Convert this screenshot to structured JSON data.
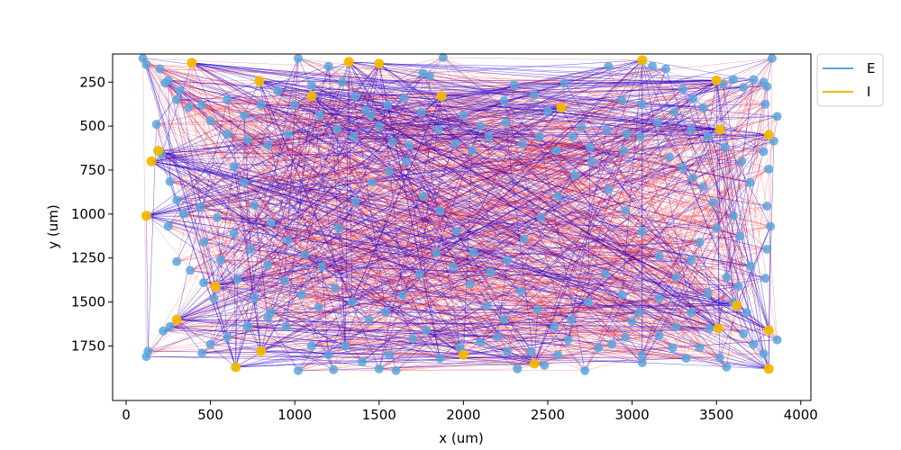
{
  "chart_data": {
    "type": "scatter",
    "title": "",
    "xlabel": "x (um)",
    "ylabel": "y (um)",
    "xlim": [
      -80,
      4060
    ],
    "ylim": [
      2060,
      90
    ],
    "y_inverted": true,
    "xticks": [
      0,
      500,
      1000,
      1500,
      2000,
      2500,
      3000,
      3500,
      4000
    ],
    "yticks": [
      250,
      500,
      750,
      1000,
      1250,
      1500,
      1750
    ],
    "grid": false,
    "legend": {
      "placement": "outside top-right",
      "entries": [
        {
          "label": "E",
          "color": "#5DA5DA"
        },
        {
          "label": "I",
          "color": "#F2B800"
        }
      ]
    },
    "connection_colors": {
      "excitatory": "#ff0000",
      "inhibitory": "#2200cc"
    },
    "series": [
      {
        "name": "E",
        "color": "#5DA5DA",
        "points": [
          [
            100,
            115
          ],
          [
            120,
            150
          ],
          [
            200,
            175
          ],
          [
            250,
            240
          ],
          [
            230,
            255
          ],
          [
            320,
            300
          ],
          [
            300,
            350
          ],
          [
            370,
            395
          ],
          [
            450,
            380
          ],
          [
            500,
            470
          ],
          [
            600,
            545
          ],
          [
            720,
            575
          ],
          [
            840,
            610
          ],
          [
            960,
            545
          ],
          [
            1020,
            115
          ],
          [
            1100,
            265
          ],
          [
            1200,
            160
          ],
          [
            1280,
            250
          ],
          [
            1360,
            330
          ],
          [
            1420,
            410
          ],
          [
            1500,
            500
          ],
          [
            1580,
            590
          ],
          [
            1680,
            610
          ],
          [
            1760,
            200
          ],
          [
            1800,
            215
          ],
          [
            1880,
            110
          ],
          [
            2000,
            440
          ],
          [
            2100,
            500
          ],
          [
            2240,
            355
          ],
          [
            2300,
            265
          ],
          [
            2420,
            325
          ],
          [
            2500,
            415
          ],
          [
            2600,
            255
          ],
          [
            2700,
            505
          ],
          [
            2860,
            160
          ],
          [
            2940,
            355
          ],
          [
            2970,
            545
          ],
          [
            3060,
            375
          ],
          [
            3120,
            160
          ],
          [
            3200,
            175
          ],
          [
            3300,
            290
          ],
          [
            3360,
            345
          ],
          [
            3420,
            395
          ],
          [
            3540,
            260
          ],
          [
            3600,
            235
          ],
          [
            3660,
            280
          ],
          [
            3720,
            235
          ],
          [
            3780,
            250
          ],
          [
            3800,
            275
          ],
          [
            3830,
            115
          ],
          [
            3840,
            585
          ],
          [
            3860,
            445
          ],
          [
            3790,
            375
          ],
          [
            3780,
            645
          ],
          [
            3810,
            745
          ],
          [
            3800,
            955
          ],
          [
            3820,
            1070
          ],
          [
            3800,
            1200
          ],
          [
            3790,
            1365
          ],
          [
            3860,
            1715
          ],
          [
            3780,
            1795
          ],
          [
            3660,
            1680
          ],
          [
            3600,
            1505
          ],
          [
            3630,
            1410
          ],
          [
            3700,
            1295
          ],
          [
            3640,
            1125
          ],
          [
            3600,
            1010
          ],
          [
            3480,
            935
          ],
          [
            3420,
            845
          ],
          [
            3360,
            795
          ],
          [
            3300,
            735
          ],
          [
            3220,
            675
          ],
          [
            180,
            490
          ],
          [
            210,
            660
          ],
          [
            260,
            815
          ],
          [
            300,
            920
          ],
          [
            340,
            1000
          ],
          [
            250,
            1070
          ],
          [
            300,
            1270
          ],
          [
            380,
            1320
          ],
          [
            460,
            1390
          ],
          [
            520,
            1480
          ],
          [
            260,
            1640
          ],
          [
            220,
            1665
          ],
          [
            130,
            1780
          ],
          [
            120,
            1810
          ],
          [
            450,
            1790
          ],
          [
            500,
            1740
          ],
          [
            600,
            1700
          ],
          [
            720,
            1640
          ],
          [
            840,
            1590
          ],
          [
            950,
            1640
          ],
          [
            1020,
            1890
          ],
          [
            1100,
            1750
          ],
          [
            1200,
            1800
          ],
          [
            1230,
            1885
          ],
          [
            1300,
            1750
          ],
          [
            1400,
            1840
          ],
          [
            1500,
            1880
          ],
          [
            1560,
            1800
          ],
          [
            1600,
            1890
          ],
          [
            1700,
            1710
          ],
          [
            1780,
            1660
          ],
          [
            1860,
            1820
          ],
          [
            1980,
            1760
          ],
          [
            2100,
            1730
          ],
          [
            2200,
            1700
          ],
          [
            2260,
            1780
          ],
          [
            2320,
            1880
          ],
          [
            2400,
            1780
          ],
          [
            2480,
            1860
          ],
          [
            2560,
            1800
          ],
          [
            2620,
            1715
          ],
          [
            2720,
            1890
          ],
          [
            2800,
            1760
          ],
          [
            2880,
            1740
          ],
          [
            2960,
            1700
          ],
          [
            3000,
            1610
          ],
          [
            3060,
            1800
          ],
          [
            3060,
            1845
          ],
          [
            3160,
            1690
          ],
          [
            3240,
            1760
          ],
          [
            3320,
            1820
          ],
          [
            3400,
            1760
          ],
          [
            3460,
            1650
          ],
          [
            3520,
            1815
          ],
          [
            3560,
            1870
          ],
          [
            640,
            730
          ],
          [
            700,
            820
          ],
          [
            760,
            950
          ],
          [
            860,
            1050
          ],
          [
            960,
            1150
          ],
          [
            1060,
            1230
          ],
          [
            1160,
            1300
          ],
          [
            1260,
            1080
          ],
          [
            1360,
            930
          ],
          [
            1460,
            820
          ],
          [
            1560,
            760
          ],
          [
            1660,
            700
          ],
          [
            1760,
            900
          ],
          [
            1860,
            980
          ],
          [
            1960,
            1100
          ],
          [
            2060,
            1220
          ],
          [
            2160,
            1330
          ],
          [
            2260,
            1260
          ],
          [
            2360,
            1140
          ],
          [
            2460,
            1020
          ],
          [
            2560,
            900
          ],
          [
            2660,
            780
          ],
          [
            2760,
            700
          ],
          [
            2860,
            860
          ],
          [
            2960,
            980
          ],
          [
            3060,
            1100
          ],
          [
            3160,
            1240
          ],
          [
            3260,
            1360
          ],
          [
            3160,
            1480
          ],
          [
            3040,
            1560
          ],
          [
            2940,
            1460
          ],
          [
            2840,
            1340
          ],
          [
            2740,
            1500
          ],
          [
            2640,
            1600
          ],
          [
            2540,
            1640
          ],
          [
            2440,
            1540
          ],
          [
            2340,
            1440
          ],
          [
            2240,
            1600
          ],
          [
            2140,
            1520
          ],
          [
            2040,
            1400
          ],
          [
            1940,
            1300
          ],
          [
            1840,
            1220
          ],
          [
            1740,
            1340
          ],
          [
            1640,
            1460
          ],
          [
            1540,
            1560
          ],
          [
            1440,
            1600
          ],
          [
            1340,
            1500
          ],
          [
            1240,
            1420
          ],
          [
            1140,
            1530
          ],
          [
            1040,
            1460
          ],
          [
            940,
            1380
          ],
          [
            840,
            1290
          ],
          [
            740,
            1200
          ],
          [
            640,
            1110
          ],
          [
            540,
            1020
          ],
          [
            440,
            960
          ],
          [
            460,
            1160
          ],
          [
            560,
            1260
          ],
          [
            660,
            1370
          ],
          [
            760,
            1480
          ],
          [
            860,
            1560
          ],
          [
            600,
            350
          ],
          [
            700,
            440
          ],
          [
            800,
            380
          ],
          [
            900,
            300
          ],
          [
            1000,
            380
          ],
          [
            1150,
            440
          ],
          [
            1250,
            520
          ],
          [
            1350,
            560
          ],
          [
            1450,
            440
          ],
          [
            1550,
            380
          ],
          [
            1650,
            340
          ],
          [
            1750,
            420
          ],
          [
            1850,
            520
          ],
          [
            1950,
            600
          ],
          [
            2050,
            640
          ],
          [
            2150,
            560
          ],
          [
            2250,
            480
          ],
          [
            2350,
            600
          ],
          [
            2450,
            560
          ],
          [
            2550,
            640
          ],
          [
            2650,
            560
          ],
          [
            2750,
            620
          ],
          [
            2850,
            520
          ],
          [
            2950,
            640
          ],
          [
            3050,
            560
          ],
          [
            3150,
            480
          ],
          [
            3250,
            420
          ],
          [
            3350,
            520
          ],
          [
            3450,
            560
          ],
          [
            3550,
            620
          ],
          [
            3650,
            700
          ],
          [
            3700,
            820
          ],
          [
            3500,
            1080
          ],
          [
            3400,
            1160
          ],
          [
            3350,
            1260
          ],
          [
            3560,
            1360
          ],
          [
            3450,
            1450
          ],
          [
            3350,
            1560
          ],
          [
            3260,
            1640
          ],
          [
            3680,
            1560
          ],
          [
            3720,
            1740
          ]
        ]
      },
      {
        "name": "I",
        "color": "#F2B800",
        "points": [
          [
            390,
            140
          ],
          [
            150,
            700
          ],
          [
            120,
            1010
          ],
          [
            190,
            640
          ],
          [
            300,
            1600
          ],
          [
            530,
            1410
          ],
          [
            650,
            1870
          ],
          [
            800,
            1780
          ],
          [
            790,
            245
          ],
          [
            1100,
            330
          ],
          [
            1320,
            135
          ],
          [
            1500,
            145
          ],
          [
            1870,
            330
          ],
          [
            2580,
            395
          ],
          [
            2420,
            1850
          ],
          [
            2000,
            1800
          ],
          [
            3060,
            125
          ],
          [
            3500,
            240
          ],
          [
            3520,
            520
          ],
          [
            3810,
            550
          ],
          [
            3810,
            1660
          ],
          [
            3810,
            1880
          ],
          [
            3510,
            1650
          ],
          [
            3620,
            1520
          ]
        ]
      }
    ]
  }
}
